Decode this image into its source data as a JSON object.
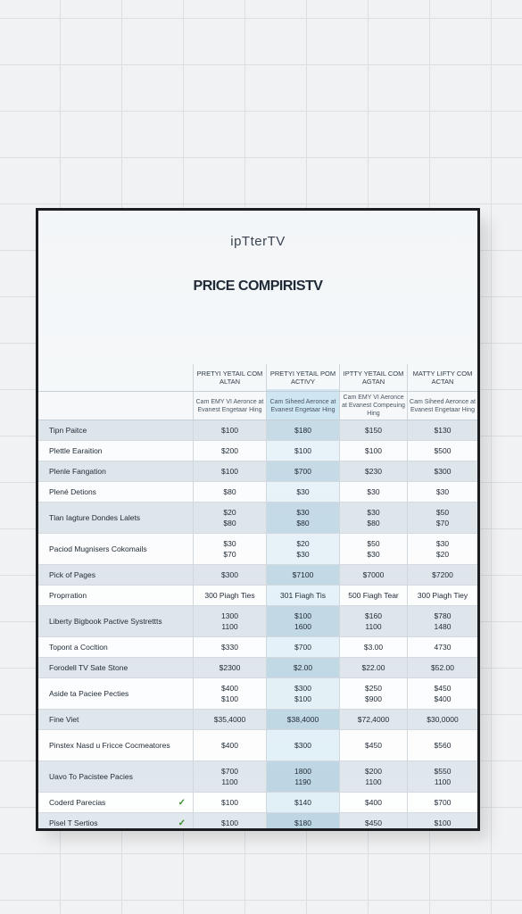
{
  "brand": "ipTterTV",
  "title": "PRICE COMPIRISTV",
  "columns": [
    {
      "head": "PRETYI YETAIL COM ALTAN",
      "sub": "Cam EMY VI Aeronce at Evanest Engetaar Hing"
    },
    {
      "head": "PRETYI YETAIL POM ACTIVY",
      "sub": "Cam Siheed Aeronce at Evanest Engetaar Hing"
    },
    {
      "head": "IPTTY YETAIL COM AGTAN",
      "sub": "Cam EMY VI Aeronce at Evanest Compeuing Hing"
    },
    {
      "head": "MATTY LIFTY COM ACTAN",
      "sub": "Cam Siheed Aeronce at Evanest Engetaar Hing"
    }
  ],
  "rows": [
    {
      "label": "Tipn Paitce",
      "values": [
        [
          "$100"
        ],
        [
          "$180"
        ],
        [
          "$150"
        ],
        [
          "$130"
        ]
      ],
      "check": ""
    },
    {
      "label": "Plettle Earaition",
      "values": [
        [
          "$200"
        ],
        [
          "$100"
        ],
        [
          "$100"
        ],
        [
          "$500"
        ]
      ],
      "check": ""
    },
    {
      "label": "Plenle Fangation",
      "values": [
        [
          "$100"
        ],
        [
          "$700"
        ],
        [
          "$230"
        ],
        [
          "$300"
        ]
      ],
      "check": ""
    },
    {
      "label": "Plené Detions",
      "values": [
        [
          "$80"
        ],
        [
          "$30"
        ],
        [
          "$30"
        ],
        [
          "$30"
        ]
      ],
      "check": ""
    },
    {
      "label": "Tlan Iagture Dondes Lalets",
      "values": [
        [
          "$20",
          "$80"
        ],
        [
          "$30",
          "$80"
        ],
        [
          "$30",
          "$80"
        ],
        [
          "$50",
          "$70"
        ]
      ],
      "check": ""
    },
    {
      "label": "Paciod Mugnisers Cokomails",
      "values": [
        [
          "$30",
          "$70"
        ],
        [
          "$20",
          "$30"
        ],
        [
          "$50",
          "$30"
        ],
        [
          "$30",
          "$20"
        ]
      ],
      "check": ""
    },
    {
      "label": "Pick of Pages",
      "values": [
        [
          "$300"
        ],
        [
          "$7100"
        ],
        [
          "$7000"
        ],
        [
          "$7200"
        ]
      ],
      "check": ""
    },
    {
      "label": "Proprration",
      "values": [
        [
          "300 Piagh Ties"
        ],
        [
          "301 Fiagh Tis"
        ],
        [
          "500 Fiagh Tear"
        ],
        [
          "300 Piagh Tiey"
        ]
      ],
      "check": ""
    },
    {
      "label": "Liberty Bigbook Pactive Systrettts",
      "values": [
        [
          "1300",
          "1100"
        ],
        [
          "$100",
          "1600"
        ],
        [
          "$160",
          "1100"
        ],
        [
          "$780",
          "1480"
        ]
      ],
      "check": ""
    },
    {
      "label": "Topont a Cocltion",
      "values": [
        [
          "$330"
        ],
        [
          "$700"
        ],
        [
          "$3.00"
        ],
        [
          "4730"
        ]
      ],
      "check": ""
    },
    {
      "label": "Forodell TV Sate Stone",
      "values": [
        [
          "$2300"
        ],
        [
          "$2.00"
        ],
        [
          "$22.00"
        ],
        [
          "$52.00"
        ]
      ],
      "check": ""
    },
    {
      "label": "Aside ta Paciee Pecties",
      "values": [
        [
          "$400",
          "$100"
        ],
        [
          "$300",
          "$100"
        ],
        [
          "$250",
          "$900"
        ],
        [
          "$450",
          "$400"
        ]
      ],
      "check": ""
    },
    {
      "label": "Fine Viet",
      "values": [
        [
          "$35,4000"
        ],
        [
          "$38,4000"
        ],
        [
          "$72,4000"
        ],
        [
          "$30,0000"
        ]
      ],
      "check": ""
    },
    {
      "label": "Pinstex Nasd u Fricce Cocmeatores",
      "values": [
        [
          "$400"
        ],
        [
          "$300"
        ],
        [
          "$450"
        ],
        [
          "$560"
        ]
      ],
      "check": ""
    },
    {
      "label": "Uavo To Pacistee Pacies",
      "values": [
        [
          "$700",
          "1100"
        ],
        [
          "1800",
          "1190"
        ],
        [
          "$200",
          "1100"
        ],
        [
          "$550",
          "1100"
        ]
      ],
      "check": ""
    },
    {
      "label": "Coderd Parecias",
      "values": [
        [
          "$100"
        ],
        [
          "$140"
        ],
        [
          "$400"
        ],
        [
          "$700"
        ]
      ],
      "check": "✓"
    },
    {
      "label": "Pisel T Sertios",
      "values": [
        [
          "$100"
        ],
        [
          "$180"
        ],
        [
          "$450"
        ],
        [
          "$100"
        ]
      ],
      "check": "✓"
    }
  ]
}
